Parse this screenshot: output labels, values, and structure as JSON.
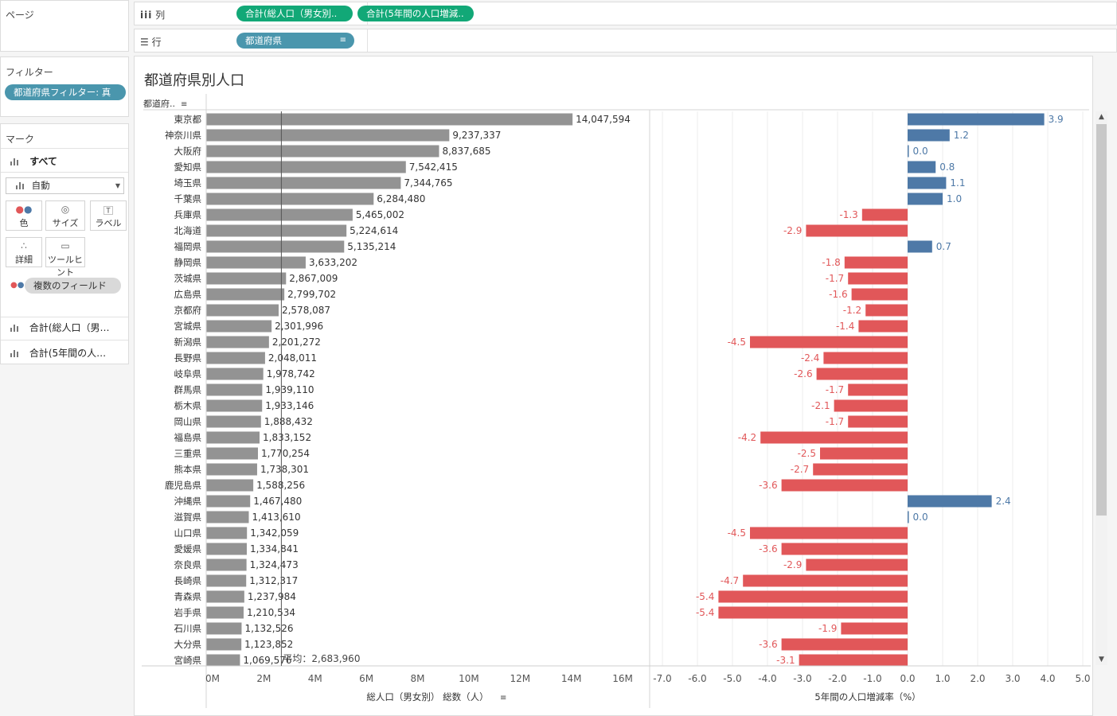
{
  "pages_label": "ページ",
  "columns_shelf": {
    "label": "列",
    "pills": [
      "合計(総人口（男女別..",
      "合計(5年間の人口増減.."
    ]
  },
  "rows_shelf": {
    "label": "行",
    "pill": "都道府県"
  },
  "filters": {
    "title": "フィルター",
    "pill": "都道府県フィルター: 真"
  },
  "marks": {
    "title": "マーク",
    "all_label": "すべて",
    "type_select": "自動",
    "buttons": {
      "color": "色",
      "size": "サイズ",
      "label": "ラベル",
      "detail": "詳細",
      "tooltip": "ツールヒント"
    },
    "multi_field": "複数のフィールド",
    "measures": [
      "合計(総人口（男…",
      "合計(5年間の人…"
    ]
  },
  "colors": {
    "teal": "#4a96ad",
    "green": "#12a877",
    "bar_gray": "#939393",
    "pos_blue": "#4e79a7",
    "neg_red": "#e15759"
  },
  "chart_data": {
    "type": "bar",
    "title": "都道府県別人口",
    "row_header": "都道府..",
    "categories": [
      "東京都",
      "神奈川県",
      "大阪府",
      "愛知県",
      "埼玉県",
      "千葉県",
      "兵庫県",
      "北海道",
      "福岡県",
      "静岡県",
      "茨城県",
      "広島県",
      "京都府",
      "宮城県",
      "新潟県",
      "長野県",
      "岐阜県",
      "群馬県",
      "栃木県",
      "岡山県",
      "福島県",
      "三重県",
      "熊本県",
      "鹿児島県",
      "沖縄県",
      "滋賀県",
      "山口県",
      "愛媛県",
      "奈良県",
      "長崎県",
      "青森県",
      "岩手県",
      "石川県",
      "大分県",
      "宮崎県"
    ],
    "series": [
      {
        "name": "総人口（男女別） 総数（人）",
        "labels": [
          "14,047,594",
          "9,237,337",
          "8,837,685",
          "7,542,415",
          "7,344,765",
          "6,284,480",
          "5,465,002",
          "5,224,614",
          "5,135,214",
          "3,633,202",
          "2,867,009",
          "2,799,702",
          "2,578,087",
          "2,301,996",
          "2,201,272",
          "2,048,011",
          "1,978,742",
          "1,939,110",
          "1,933,146",
          "1,888,432",
          "1,833,152",
          "1,770,254",
          "1,738,301",
          "1,588,256",
          "1,467,480",
          "1,413,610",
          "1,342,059",
          "1,334,841",
          "1,324,473",
          "1,312,317",
          "1,237,984",
          "1,210,534",
          "1,132,526",
          "1,123,852",
          "1,069,576"
        ],
        "values": [
          14047594,
          9237337,
          8837685,
          7542415,
          7344765,
          6284480,
          5465002,
          5224614,
          5135214,
          3633202,
          2867009,
          2799702,
          2578087,
          2301996,
          2201272,
          2048011,
          1978742,
          1939110,
          1933146,
          1888432,
          1833152,
          1770254,
          1738301,
          1588256,
          1467480,
          1413610,
          1342059,
          1334841,
          1324473,
          1312317,
          1237984,
          1210534,
          1132526,
          1123852,
          1069576
        ],
        "xlabel": "総人口（男女別） 総数（人）",
        "ticks": [
          "0M",
          "2M",
          "4M",
          "6M",
          "8M",
          "10M",
          "12M",
          "14M",
          "16M"
        ],
        "xlim": [
          0,
          16000000
        ],
        "reference_line": {
          "value": 2683960,
          "label": "平均：2,683,960"
        }
      },
      {
        "name": "5年間の人口増減率（%）",
        "values": [
          3.9,
          1.2,
          0.0,
          0.8,
          1.1,
          1.0,
          -1.3,
          -2.9,
          0.7,
          -1.8,
          -1.7,
          -1.6,
          -1.2,
          -1.4,
          -4.5,
          -2.4,
          -2.6,
          -1.7,
          -2.1,
          -1.7,
          -4.2,
          -2.5,
          -2.7,
          -3.6,
          2.4,
          0.0,
          -4.5,
          -3.6,
          -2.9,
          -4.7,
          -5.4,
          -5.4,
          -1.9,
          -3.6,
          -3.1
        ],
        "xlabel": "5年間の人口増減率（%）",
        "ticks": [
          "-7.0",
          "-6.0",
          "-5.0",
          "-4.0",
          "-3.0",
          "-2.0",
          "-1.0",
          "0.0",
          "1.0",
          "2.0",
          "3.0",
          "4.0",
          "5.0"
        ],
        "xlim": [
          -7.0,
          5.0
        ]
      }
    ]
  }
}
